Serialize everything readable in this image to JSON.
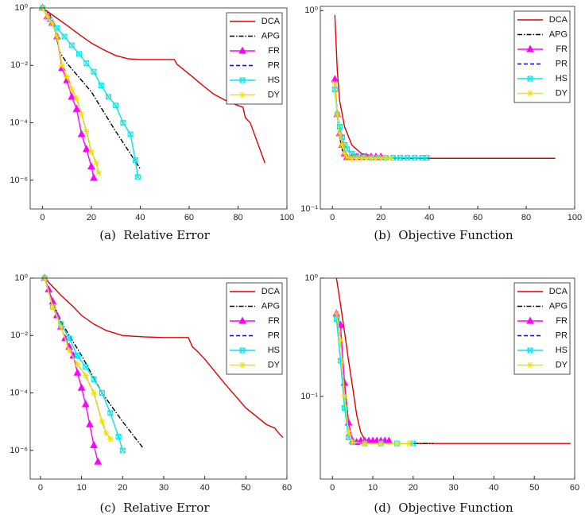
{
  "chart_data": [
    {
      "type": "line",
      "caption": "(a)  Relative Error",
      "yscale": "log",
      "legend": "upper right",
      "xlim": [
        -5,
        100
      ],
      "xticks": [
        0,
        20,
        40,
        60,
        80,
        100
      ],
      "ylim": [
        1e-07,
        1
      ],
      "yticks": [
        {
          "value": 1e-06,
          "label": "10⁻⁶"
        },
        {
          "value": 0.0001,
          "label": "10⁻⁴"
        },
        {
          "value": 0.01,
          "label": "10⁻²"
        },
        {
          "value": 1,
          "label": "10⁰"
        }
      ],
      "series": [
        {
          "name": "DCA",
          "color": "#e00000",
          "dash": "solid",
          "marker": "none",
          "x": [
            0,
            5,
            10,
            15,
            20,
            25,
            30,
            35,
            40,
            45,
            50,
            54,
            55,
            60,
            65,
            70,
            75,
            80,
            82,
            83,
            85,
            88,
            91
          ],
          "values": [
            1,
            0.5,
            0.25,
            0.12,
            0.06,
            0.035,
            0.022,
            0.017,
            0.016,
            0.016,
            0.016,
            0.016,
            0.011,
            0.005,
            0.0022,
            0.001,
            0.0006,
            0.0004,
            0.00035,
            0.00015,
            0.0001,
            2e-05,
            4e-06
          ]
        },
        {
          "name": "APG",
          "color": "#000000",
          "dash": "dashdot",
          "marker": "none",
          "x": [
            0,
            3,
            5,
            7,
            10,
            20,
            30,
            40
          ],
          "values": [
            1,
            0.6,
            0.2,
            0.03,
            0.012,
            0.0012,
            5e-05,
            2.5e-06
          ]
        },
        {
          "name": "FR",
          "color": "#ff00ff",
          "dash": "solid",
          "marker": "triangle",
          "x": [
            0,
            2,
            4,
            6,
            8,
            10,
            12,
            14,
            16,
            18,
            20,
            21
          ],
          "values": [
            1,
            0.5,
            0.3,
            0.1,
            0.008,
            0.003,
            0.0008,
            0.0003,
            4e-05,
            1.2e-05,
            3e-06,
            1.2e-06
          ]
        },
        {
          "name": "PR",
          "color": "#0000ff",
          "dash": "dashed",
          "marker": "none",
          "x": [
            0,
            2,
            4,
            6,
            8,
            10,
            12,
            14,
            16,
            18,
            20,
            22,
            23
          ],
          "values": [
            1,
            0.5,
            0.3,
            0.1,
            0.01,
            0.004,
            0.0015,
            0.0007,
            0.0002,
            5e-05,
            1e-05,
            4e-06,
            1.8e-06
          ]
        },
        {
          "name": "HS",
          "color": "#00e5ee",
          "dash": "solid",
          "marker": "cross",
          "x": [
            0,
            3,
            6,
            9,
            12,
            15,
            18,
            21,
            24,
            27,
            30,
            33,
            36,
            38,
            39
          ],
          "values": [
            1,
            0.4,
            0.2,
            0.1,
            0.05,
            0.025,
            0.012,
            0.006,
            0.002,
            0.0008,
            0.0004,
            0.0001,
            4e-05,
            5e-06,
            1.3e-06
          ]
        },
        {
          "name": "DY",
          "color": "#f0e000",
          "dash": "solid",
          "marker": "plus",
          "x": [
            0,
            2,
            4,
            6,
            8,
            10,
            12,
            14,
            16,
            18,
            20,
            22,
            23
          ],
          "values": [
            1,
            0.5,
            0.3,
            0.1,
            0.01,
            0.004,
            0.0015,
            0.0007,
            0.0002,
            5e-05,
            1e-05,
            4e-06,
            1.8e-06
          ]
        }
      ]
    },
    {
      "type": "line",
      "caption": "(b)  Objective Function",
      "yscale": "log",
      "legend": "upper right",
      "xlim": [
        -5,
        100
      ],
      "xticks": [
        0,
        20,
        40,
        60,
        80,
        100
      ],
      "ylim": [
        0.1,
        1.05
      ],
      "yticks": [
        {
          "value": 0.1,
          "label": "10⁻¹"
        },
        {
          "value": 1,
          "label": "10⁰"
        }
      ],
      "series": [
        {
          "name": "DCA",
          "color": "#e00000",
          "dash": "solid",
          "marker": "none",
          "x": [
            1,
            2,
            3,
            5,
            8,
            12,
            20,
            40,
            60,
            80,
            92
          ],
          "values": [
            0.95,
            0.5,
            0.35,
            0.26,
            0.21,
            0.19,
            0.182,
            0.18,
            0.18,
            0.18,
            0.18
          ]
        },
        {
          "name": "APG",
          "color": "#000000",
          "dash": "dashdot",
          "marker": "none",
          "x": [
            1,
            2,
            3,
            4,
            5,
            8,
            40
          ],
          "values": [
            0.42,
            0.3,
            0.23,
            0.2,
            0.185,
            0.18,
            0.18
          ]
        },
        {
          "name": "FR",
          "color": "#ff00ff",
          "dash": "solid",
          "marker": "triangle",
          "x": [
            1,
            2,
            3,
            4,
            5,
            6,
            8,
            10,
            12,
            14,
            16,
            18,
            20
          ],
          "values": [
            0.45,
            0.3,
            0.24,
            0.21,
            0.19,
            0.182,
            0.183,
            0.183,
            0.183,
            0.183,
            0.183,
            0.183,
            0.183
          ]
        },
        {
          "name": "PR",
          "color": "#0000ff",
          "dash": "dashed",
          "marker": "none",
          "x": [
            1,
            2,
            3,
            4,
            5,
            6,
            8,
            12,
            16,
            20,
            24
          ],
          "values": [
            0.43,
            0.3,
            0.24,
            0.21,
            0.19,
            0.182,
            0.18,
            0.18,
            0.18,
            0.18,
            0.18
          ]
        },
        {
          "name": "HS",
          "color": "#00e5ee",
          "dash": "solid",
          "marker": "cross",
          "x": [
            1,
            2,
            3,
            4,
            5,
            6,
            8,
            10,
            13,
            16,
            19,
            22,
            25,
            28,
            31,
            34,
            37,
            39
          ],
          "values": [
            0.4,
            0.3,
            0.26,
            0.23,
            0.21,
            0.2,
            0.19,
            0.185,
            0.182,
            0.181,
            0.181,
            0.181,
            0.181,
            0.181,
            0.181,
            0.181,
            0.181,
            0.181
          ]
        },
        {
          "name": "DY",
          "color": "#f0e000",
          "dash": "solid",
          "marker": "plus",
          "x": [
            1,
            2,
            3,
            4,
            5,
            6,
            8,
            10,
            12,
            14,
            16,
            18,
            20,
            22,
            24
          ],
          "values": [
            0.43,
            0.3,
            0.24,
            0.21,
            0.19,
            0.182,
            0.18,
            0.18,
            0.18,
            0.18,
            0.18,
            0.18,
            0.18,
            0.18,
            0.18
          ]
        }
      ]
    },
    {
      "type": "line",
      "caption": "(c)  Relative Error",
      "yscale": "log",
      "legend": "upper right",
      "xlim": [
        -2.5,
        60
      ],
      "xticks": [
        0,
        10,
        20,
        30,
        40,
        50,
        60
      ],
      "ylim": [
        1e-07,
        1
      ],
      "yticks": [
        {
          "value": 1e-06,
          "label": "10⁻⁶"
        },
        {
          "value": 0.0001,
          "label": "10⁻⁴"
        },
        {
          "value": 0.01,
          "label": "10⁻²"
        },
        {
          "value": 1,
          "label": "10⁰"
        }
      ],
      "series": [
        {
          "name": "DCA",
          "color": "#e00000",
          "dash": "solid",
          "marker": "none",
          "x": [
            1,
            3,
            5,
            8,
            10,
            13,
            16,
            20,
            25,
            30,
            36,
            37,
            38,
            40,
            45,
            50,
            55,
            57,
            58,
            59
          ],
          "values": [
            1,
            0.5,
            0.25,
            0.1,
            0.05,
            0.025,
            0.015,
            0.01,
            0.009,
            0.0085,
            0.0085,
            0.004,
            0.003,
            0.0015,
            0.0002,
            3e-05,
            8e-06,
            6e-06,
            4e-06,
            2.8e-06
          ]
        },
        {
          "name": "APG",
          "color": "#000000",
          "dash": "dashdot",
          "marker": "none",
          "x": [
            1,
            3,
            5,
            10,
            15,
            20,
            25
          ],
          "values": [
            1,
            0.15,
            0.03,
            0.002,
            0.0001,
            1e-05,
            1.2e-06
          ]
        },
        {
          "name": "FR",
          "color": "#ff00ff",
          "dash": "solid",
          "marker": "triangle",
          "x": [
            1,
            2,
            3,
            4,
            5,
            6,
            7,
            8,
            9,
            10,
            11,
            12,
            13,
            14
          ],
          "values": [
            1,
            0.4,
            0.15,
            0.05,
            0.02,
            0.008,
            0.004,
            0.002,
            0.0005,
            0.00015,
            4e-05,
            8e-06,
            1.5e-06,
            4e-07
          ]
        },
        {
          "name": "PR",
          "color": "#0000ff",
          "dash": "dashed",
          "marker": "none",
          "x": [
            1,
            3,
            5,
            7,
            9,
            11,
            13,
            15,
            16,
            17
          ],
          "values": [
            1,
            0.1,
            0.02,
            0.003,
            0.001,
            0.0004,
            0.0001,
            1e-05,
            4e-06,
            2.5e-06
          ]
        },
        {
          "name": "HS",
          "color": "#00e5ee",
          "dash": "solid",
          "marker": "cross",
          "x": [
            1,
            3,
            5,
            7,
            9,
            11,
            13,
            15,
            17,
            19,
            20
          ],
          "values": [
            1,
            0.1,
            0.025,
            0.008,
            0.002,
            0.0008,
            0.0003,
            0.0001,
            2e-05,
            3e-06,
            1e-06
          ]
        },
        {
          "name": "DY",
          "color": "#f0e000",
          "dash": "solid",
          "marker": "plus",
          "x": [
            1,
            3,
            5,
            7,
            9,
            11,
            13,
            15,
            16,
            17
          ],
          "values": [
            1,
            0.1,
            0.02,
            0.003,
            0.001,
            0.0004,
            0.0001,
            1e-05,
            4e-06,
            2.5e-06
          ]
        }
      ]
    },
    {
      "type": "line",
      "caption": "(d)  Objective Function",
      "yscale": "log",
      "legend": "upper right",
      "xlim": [
        -3,
        60
      ],
      "xticks": [
        0,
        10,
        20,
        30,
        40,
        50,
        60
      ],
      "ylim": [
        0.02,
        1
      ],
      "yticks": [
        {
          "value": 0.1,
          "label": "10⁻¹"
        },
        {
          "value": 1,
          "label": "10⁰"
        }
      ],
      "series": [
        {
          "name": "DCA",
          "color": "#e00000",
          "dash": "solid",
          "marker": "none",
          "x": [
            1,
            2,
            3,
            4,
            5,
            6,
            7,
            8,
            10,
            15,
            30,
            59
          ],
          "values": [
            1,
            0.6,
            0.35,
            0.2,
            0.12,
            0.07,
            0.05,
            0.043,
            0.041,
            0.04,
            0.04,
            0.04
          ]
        },
        {
          "name": "APG",
          "color": "#000000",
          "dash": "dashdot",
          "marker": "none",
          "x": [
            1,
            2,
            3,
            4,
            5,
            25
          ],
          "values": [
            0.5,
            0.3,
            0.13,
            0.06,
            0.04,
            0.04
          ]
        },
        {
          "name": "FR",
          "color": "#ff00ff",
          "dash": "solid",
          "marker": "triangle",
          "x": [
            1,
            2,
            3,
            4,
            5,
            6,
            7,
            8,
            9,
            10,
            11,
            12,
            13,
            14
          ],
          "values": [
            0.5,
            0.4,
            0.13,
            0.06,
            0.042,
            0.041,
            0.042,
            0.042,
            0.042,
            0.042,
            0.042,
            0.042,
            0.042,
            0.042
          ]
        },
        {
          "name": "PR",
          "color": "#0000ff",
          "dash": "dashed",
          "marker": "none",
          "x": [
            1,
            2,
            3,
            4,
            5,
            8,
            12,
            16,
            19
          ],
          "values": [
            0.5,
            0.3,
            0.1,
            0.05,
            0.041,
            0.04,
            0.04,
            0.04,
            0.04
          ]
        },
        {
          "name": "HS",
          "color": "#00e5ee",
          "dash": "solid",
          "marker": "cross",
          "x": [
            1,
            2,
            3,
            4,
            5,
            8,
            12,
            16,
            20
          ],
          "values": [
            0.45,
            0.2,
            0.08,
            0.045,
            0.041,
            0.04,
            0.04,
            0.04,
            0.04
          ]
        },
        {
          "name": "DY",
          "color": "#f0e000",
          "dash": "solid",
          "marker": "plus",
          "x": [
            1,
            2,
            3,
            4,
            5,
            8,
            12,
            16,
            19
          ],
          "values": [
            0.5,
            0.3,
            0.1,
            0.05,
            0.041,
            0.04,
            0.04,
            0.04,
            0.04
          ]
        }
      ]
    }
  ]
}
